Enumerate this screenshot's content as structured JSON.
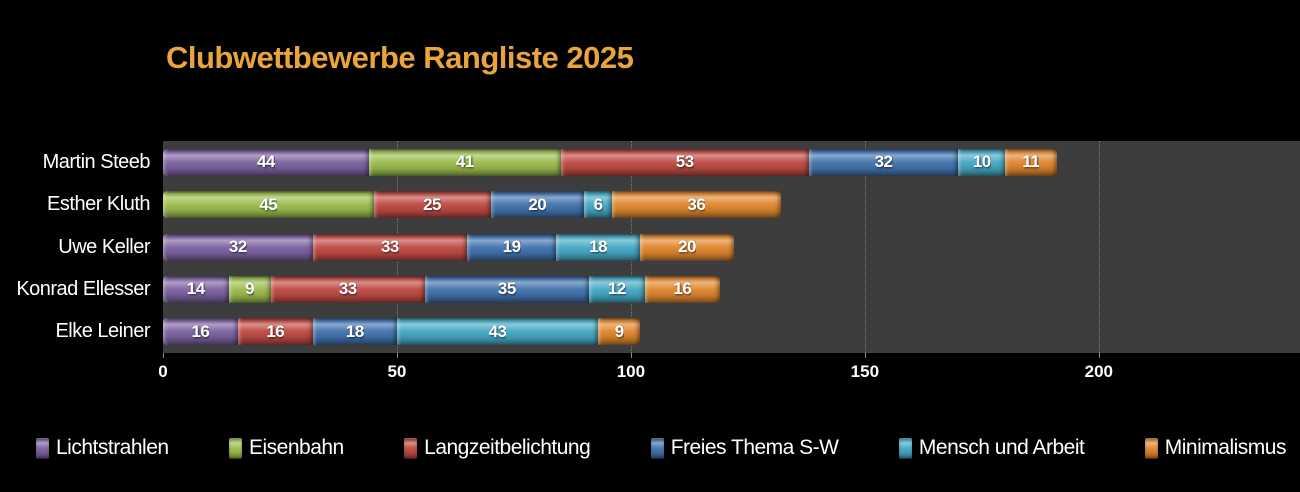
{
  "title_color": "#E9A53C",
  "colors": {
    "page_background": "#000000",
    "plot_background": "#3D3D3D",
    "text": "#FFFFFF",
    "gridline": "rgba(225,225,225,0.38)"
  },
  "chart_data": {
    "type": "bar",
    "orientation": "horizontal",
    "stacked": true,
    "title": "Clubwettbewerbe Rangliste 2025",
    "categories": [
      "Martin Steeb",
      "Esther Kluth",
      "Uwe Keller",
      "Konrad Ellesser",
      "Elke Leiner"
    ],
    "series": [
      {
        "name": "Lichtstrahlen",
        "color": "#7E62A1",
        "values": [
          44,
          0,
          32,
          14,
          16
        ]
      },
      {
        "name": "Eisenbahn",
        "color": "#9CBE4E",
        "values": [
          41,
          45,
          0,
          9,
          0
        ]
      },
      {
        "name": "Langzeitbelichtung",
        "color": "#C04A44",
        "values": [
          53,
          25,
          33,
          33,
          16
        ]
      },
      {
        "name": "Freies Thema S-W",
        "color": "#4273AE",
        "values": [
          32,
          20,
          19,
          35,
          18
        ]
      },
      {
        "name": "Mensch und Arbeit",
        "color": "#45A9C5",
        "values": [
          10,
          6,
          18,
          12,
          43
        ]
      },
      {
        "name": "Minimalismus",
        "color": "#E0872F",
        "values": [
          11,
          36,
          20,
          16,
          9
        ]
      }
    ],
    "totals": [
      191,
      132,
      122,
      119,
      102
    ],
    "x_ticks": [
      0,
      50,
      100,
      150,
      200
    ],
    "xlim": [
      0,
      243
    ],
    "grid": "dotted-vertical",
    "legend_position": "bottom",
    "value_labels": "inside-center"
  }
}
